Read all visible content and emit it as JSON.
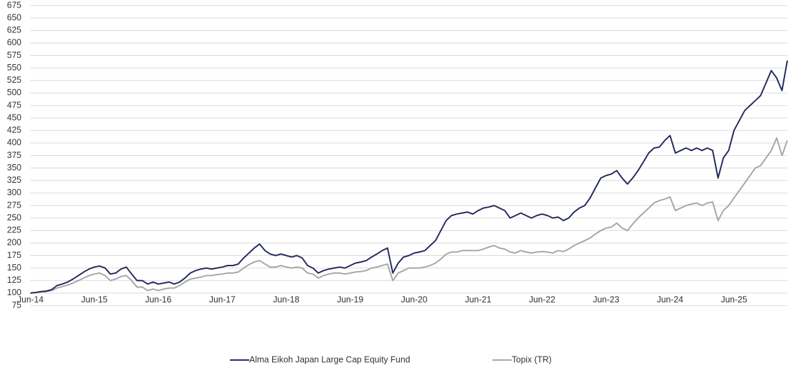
{
  "chart_data": {
    "type": "line",
    "categories": [
      "Jun-14",
      null,
      null,
      null,
      null,
      null,
      null,
      null,
      null,
      null,
      null,
      null,
      "Jun-15",
      null,
      null,
      null,
      null,
      null,
      null,
      null,
      null,
      null,
      null,
      null,
      "Jun-16",
      null,
      null,
      null,
      null,
      null,
      null,
      null,
      null,
      null,
      null,
      null,
      "Jun-17",
      null,
      null,
      null,
      null,
      null,
      null,
      null,
      null,
      null,
      null,
      null,
      "Jun-18",
      null,
      null,
      null,
      null,
      null,
      null,
      null,
      null,
      null,
      null,
      null,
      "Jun-19",
      null,
      null,
      null,
      null,
      null,
      null,
      null,
      null,
      null,
      null,
      null,
      "Jun-20",
      null,
      null,
      null,
      null,
      null,
      null,
      null,
      null,
      null,
      null,
      null,
      "Jun-21",
      null,
      null,
      null,
      null,
      null,
      null,
      null,
      null,
      null,
      null,
      null,
      "Jun-22",
      null,
      null,
      null,
      null,
      null,
      null,
      null,
      null,
      null,
      null,
      null,
      "Jun-23",
      null,
      null,
      null,
      null,
      null,
      null,
      null,
      null,
      null,
      null,
      null,
      "Jun-24",
      null,
      null,
      null,
      null,
      null,
      null,
      null,
      null,
      null,
      null,
      null,
      "Jun-25",
      null,
      null,
      null,
      null,
      null,
      null,
      null,
      null,
      null,
      null
    ],
    "series": [
      {
        "name": "Alma Eikoh Japan Large Cap Equity Fund",
        "color": "#232a5c",
        "values": [
          100,
          101,
          103,
          104,
          107,
          115,
          118,
          122,
          128,
          135,
          142,
          148,
          152,
          154,
          150,
          138,
          140,
          148,
          152,
          138,
          125,
          125,
          118,
          122,
          118,
          120,
          122,
          118,
          122,
          130,
          140,
          145,
          148,
          150,
          148,
          150,
          152,
          155,
          155,
          158,
          170,
          180,
          190,
          198,
          185,
          178,
          175,
          178,
          175,
          172,
          175,
          170,
          155,
          150,
          140,
          145,
          148,
          150,
          152,
          150,
          155,
          160,
          162,
          165,
          172,
          178,
          185,
          190,
          140,
          160,
          172,
          175,
          180,
          182,
          185,
          195,
          205,
          225,
          245,
          255,
          258,
          260,
          262,
          258,
          265,
          270,
          272,
          275,
          270,
          265,
          250,
          255,
          260,
          255,
          250,
          255,
          258,
          255,
          250,
          252,
          245,
          250,
          262,
          270,
          275,
          290,
          310,
          330,
          335,
          338,
          345,
          330,
          318,
          330,
          345,
          362,
          380,
          390,
          392,
          405,
          415,
          380,
          385,
          390,
          385,
          390,
          385,
          390,
          385,
          330,
          370,
          385,
          425,
          445,
          465,
          475,
          485,
          495,
          520,
          545,
          530,
          505,
          565
        ]
      },
      {
        "name": "Topix (TR)",
        "color": "#a6a6a6",
        "values": [
          100,
          101,
          102,
          103,
          105,
          110,
          113,
          116,
          120,
          125,
          130,
          135,
          138,
          140,
          135,
          125,
          128,
          133,
          135,
          125,
          112,
          112,
          105,
          108,
          105,
          108,
          110,
          110,
          115,
          122,
          128,
          130,
          132,
          135,
          135,
          137,
          138,
          140,
          140,
          142,
          150,
          157,
          162,
          165,
          158,
          152,
          152,
          155,
          152,
          150,
          152,
          150,
          140,
          138,
          130,
          135,
          138,
          140,
          140,
          138,
          140,
          142,
          143,
          145,
          150,
          152,
          155,
          158,
          125,
          140,
          145,
          150,
          150,
          150,
          152,
          155,
          160,
          168,
          178,
          182,
          182,
          185,
          185,
          185,
          185,
          188,
          192,
          195,
          190,
          188,
          182,
          180,
          185,
          182,
          180,
          182,
          183,
          182,
          180,
          185,
          183,
          188,
          195,
          200,
          205,
          210,
          218,
          225,
          230,
          232,
          240,
          230,
          225,
          238,
          250,
          260,
          270,
          280,
          285,
          288,
          292,
          265,
          270,
          275,
          278,
          280,
          275,
          280,
          282,
          245,
          265,
          275,
          290,
          305,
          320,
          335,
          350,
          355,
          370,
          385,
          410,
          375,
          405
        ]
      }
    ],
    "ylim": [
      75,
      675
    ],
    "yticks": [
      75,
      100,
      125,
      150,
      175,
      200,
      225,
      250,
      275,
      300,
      325,
      350,
      375,
      400,
      425,
      450,
      475,
      500,
      525,
      550,
      575,
      600,
      625,
      650,
      675
    ],
    "grid": true,
    "legend": "bottom"
  }
}
